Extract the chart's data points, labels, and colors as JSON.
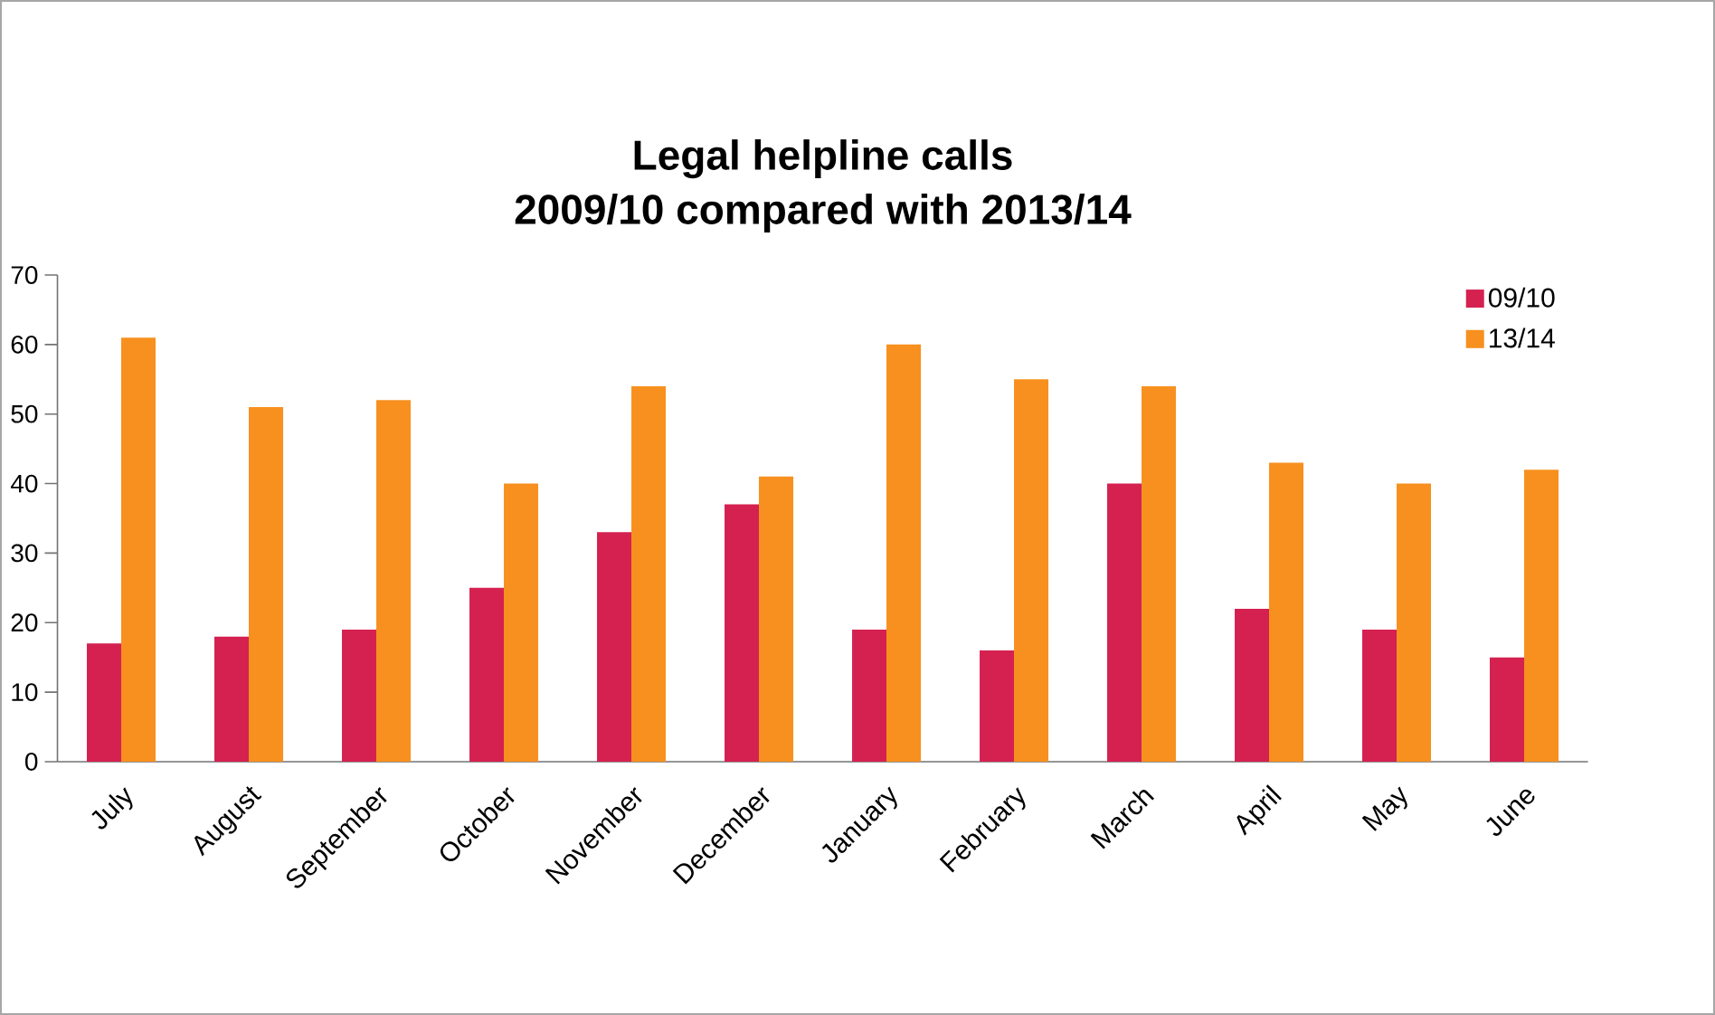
{
  "chart_data": {
    "type": "bar",
    "title": "Legal helpline calls",
    "subtitle": "2009/10 compared with 2013/14",
    "categories": [
      "July",
      "August",
      "September",
      "October",
      "November",
      "December",
      "January",
      "February",
      "March",
      "April",
      "May",
      "June"
    ],
    "series": [
      {
        "name": "09/10",
        "color": "#d42150",
        "values": [
          17,
          18,
          19,
          25,
          33,
          37,
          19,
          16,
          40,
          22,
          19,
          15
        ]
      },
      {
        "name": "13/14",
        "color": "#f7901e",
        "values": [
          61,
          51,
          52,
          40,
          54,
          41,
          60,
          55,
          54,
          43,
          40,
          42
        ]
      }
    ],
    "ylim": [
      0,
      70
    ],
    "yticks": [
      0,
      10,
      20,
      30,
      40,
      50,
      60,
      70
    ],
    "legend": "top right"
  }
}
